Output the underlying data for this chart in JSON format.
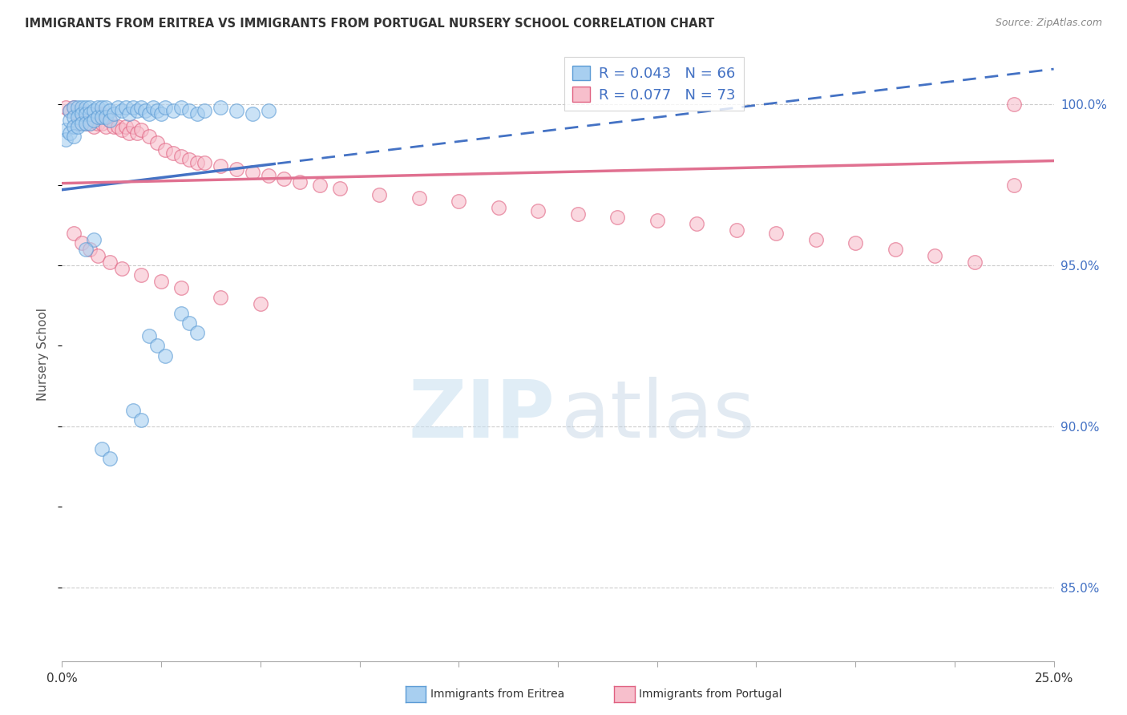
{
  "title": "IMMIGRANTS FROM ERITREA VS IMMIGRANTS FROM PORTUGAL NURSERY SCHOOL CORRELATION CHART",
  "source": "Source: ZipAtlas.com",
  "ylabel": "Nursery School",
  "yaxis_values": [
    0.85,
    0.9,
    0.95,
    1.0
  ],
  "yaxis_labels": [
    "85.0%",
    "90.0%",
    "95.0%",
    "100.0%"
  ],
  "xmin": 0.0,
  "xmax": 0.25,
  "ymin": 0.827,
  "ymax": 1.018,
  "R_eritrea": 0.043,
  "N_eritrea": 66,
  "R_portugal": 0.077,
  "N_portugal": 73,
  "color_eritrea_fill": "#a8cff0",
  "color_eritrea_edge": "#5b9bd5",
  "color_portugal_fill": "#f7bfcc",
  "color_portugal_edge": "#e06080",
  "color_eritrea_line": "#4472c4",
  "color_portugal_line": "#e07090",
  "background_color": "#ffffff",
  "watermark_zip_color": "#c8dff0",
  "watermark_atlas_color": "#b8cce0",
  "eritrea_x": [
    0.001,
    0.001,
    0.002,
    0.002,
    0.002,
    0.003,
    0.003,
    0.003,
    0.003,
    0.004,
    0.004,
    0.004,
    0.005,
    0.005,
    0.005,
    0.006,
    0.006,
    0.006,
    0.007,
    0.007,
    0.007,
    0.008,
    0.008,
    0.009,
    0.009,
    0.01,
    0.01,
    0.011,
    0.011,
    0.012,
    0.012,
    0.013,
    0.014,
    0.015,
    0.016,
    0.017,
    0.018,
    0.019,
    0.02,
    0.021,
    0.022,
    0.023,
    0.024,
    0.025,
    0.026,
    0.028,
    0.03,
    0.032,
    0.034,
    0.036,
    0.04,
    0.044,
    0.048,
    0.052,
    0.03,
    0.032,
    0.034,
    0.022,
    0.024,
    0.026,
    0.018,
    0.02,
    0.01,
    0.012,
    0.008,
    0.006
  ],
  "eritrea_y": [
    0.992,
    0.989,
    0.998,
    0.995,
    0.991,
    0.999,
    0.996,
    0.993,
    0.99,
    0.999,
    0.996,
    0.993,
    0.999,
    0.997,
    0.994,
    0.999,
    0.997,
    0.994,
    0.999,
    0.997,
    0.994,
    0.998,
    0.995,
    0.999,
    0.996,
    0.999,
    0.996,
    0.999,
    0.996,
    0.998,
    0.995,
    0.997,
    0.999,
    0.998,
    0.999,
    0.997,
    0.999,
    0.998,
    0.999,
    0.998,
    0.997,
    0.999,
    0.998,
    0.997,
    0.999,
    0.998,
    0.999,
    0.998,
    0.997,
    0.998,
    0.999,
    0.998,
    0.997,
    0.998,
    0.935,
    0.932,
    0.929,
    0.928,
    0.925,
    0.922,
    0.905,
    0.902,
    0.893,
    0.89,
    0.958,
    0.955
  ],
  "portugal_x": [
    0.001,
    0.002,
    0.003,
    0.004,
    0.004,
    0.005,
    0.005,
    0.006,
    0.006,
    0.007,
    0.007,
    0.008,
    0.008,
    0.009,
    0.009,
    0.01,
    0.01,
    0.011,
    0.011,
    0.012,
    0.013,
    0.014,
    0.015,
    0.016,
    0.017,
    0.018,
    0.019,
    0.02,
    0.022,
    0.024,
    0.026,
    0.028,
    0.03,
    0.032,
    0.034,
    0.036,
    0.04,
    0.044,
    0.048,
    0.052,
    0.056,
    0.06,
    0.065,
    0.07,
    0.08,
    0.09,
    0.1,
    0.11,
    0.12,
    0.13,
    0.14,
    0.15,
    0.16,
    0.17,
    0.18,
    0.19,
    0.2,
    0.21,
    0.22,
    0.23,
    0.24,
    0.003,
    0.005,
    0.007,
    0.009,
    0.012,
    0.015,
    0.02,
    0.025,
    0.03,
    0.04,
    0.05,
    0.24
  ],
  "portugal_y": [
    0.999,
    0.998,
    0.999,
    0.997,
    0.994,
    0.998,
    0.995,
    0.997,
    0.994,
    0.997,
    0.994,
    0.996,
    0.993,
    0.997,
    0.994,
    0.997,
    0.994,
    0.996,
    0.993,
    0.995,
    0.993,
    0.993,
    0.992,
    0.993,
    0.991,
    0.993,
    0.991,
    0.992,
    0.99,
    0.988,
    0.986,
    0.985,
    0.984,
    0.983,
    0.982,
    0.982,
    0.981,
    0.98,
    0.979,
    0.978,
    0.977,
    0.976,
    0.975,
    0.974,
    0.972,
    0.971,
    0.97,
    0.968,
    0.967,
    0.966,
    0.965,
    0.964,
    0.963,
    0.961,
    0.96,
    0.958,
    0.957,
    0.955,
    0.953,
    0.951,
    1.0,
    0.96,
    0.957,
    0.955,
    0.953,
    0.951,
    0.949,
    0.947,
    0.945,
    0.943,
    0.94,
    0.938,
    0.975
  ]
}
